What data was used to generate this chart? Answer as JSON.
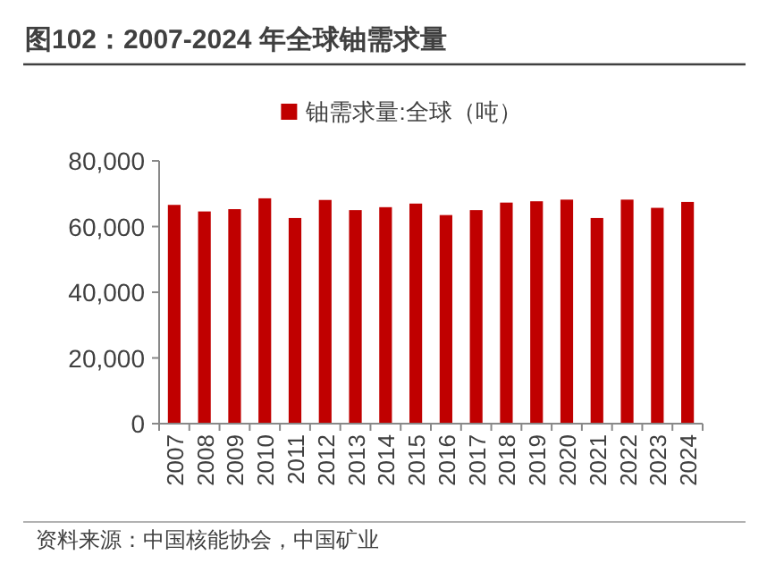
{
  "chart_data": {
    "type": "bar",
    "title": "图102：2007-2024 年全球铀需求量",
    "categories": [
      "2007",
      "2008",
      "2009",
      "2010",
      "2011",
      "2012",
      "2013",
      "2014",
      "2015",
      "2016",
      "2017",
      "2018",
      "2019",
      "2020",
      "2021",
      "2022",
      "2023",
      "2024"
    ],
    "series": [
      {
        "name": "铀需求量:全球（吨）",
        "color": "#c00000",
        "values": [
          66600,
          64600,
          65300,
          68600,
          62600,
          68100,
          65000,
          65900,
          67000,
          63500,
          65000,
          67300,
          67700,
          68200,
          62600,
          68200,
          65700,
          67500
        ]
      }
    ],
    "ylim": [
      0,
      80000
    ],
    "yticks": [
      {
        "value": 0,
        "label": "0"
      },
      {
        "value": 20000,
        "label": "20,000"
      },
      {
        "value": 40000,
        "label": "40,000"
      },
      {
        "value": 60000,
        "label": "60,000"
      },
      {
        "value": 80000,
        "label": "80,000"
      }
    ],
    "legend": "top",
    "grid": false,
    "annotations": [
      "资料来源：中国核能协会，中国矿业"
    ]
  }
}
